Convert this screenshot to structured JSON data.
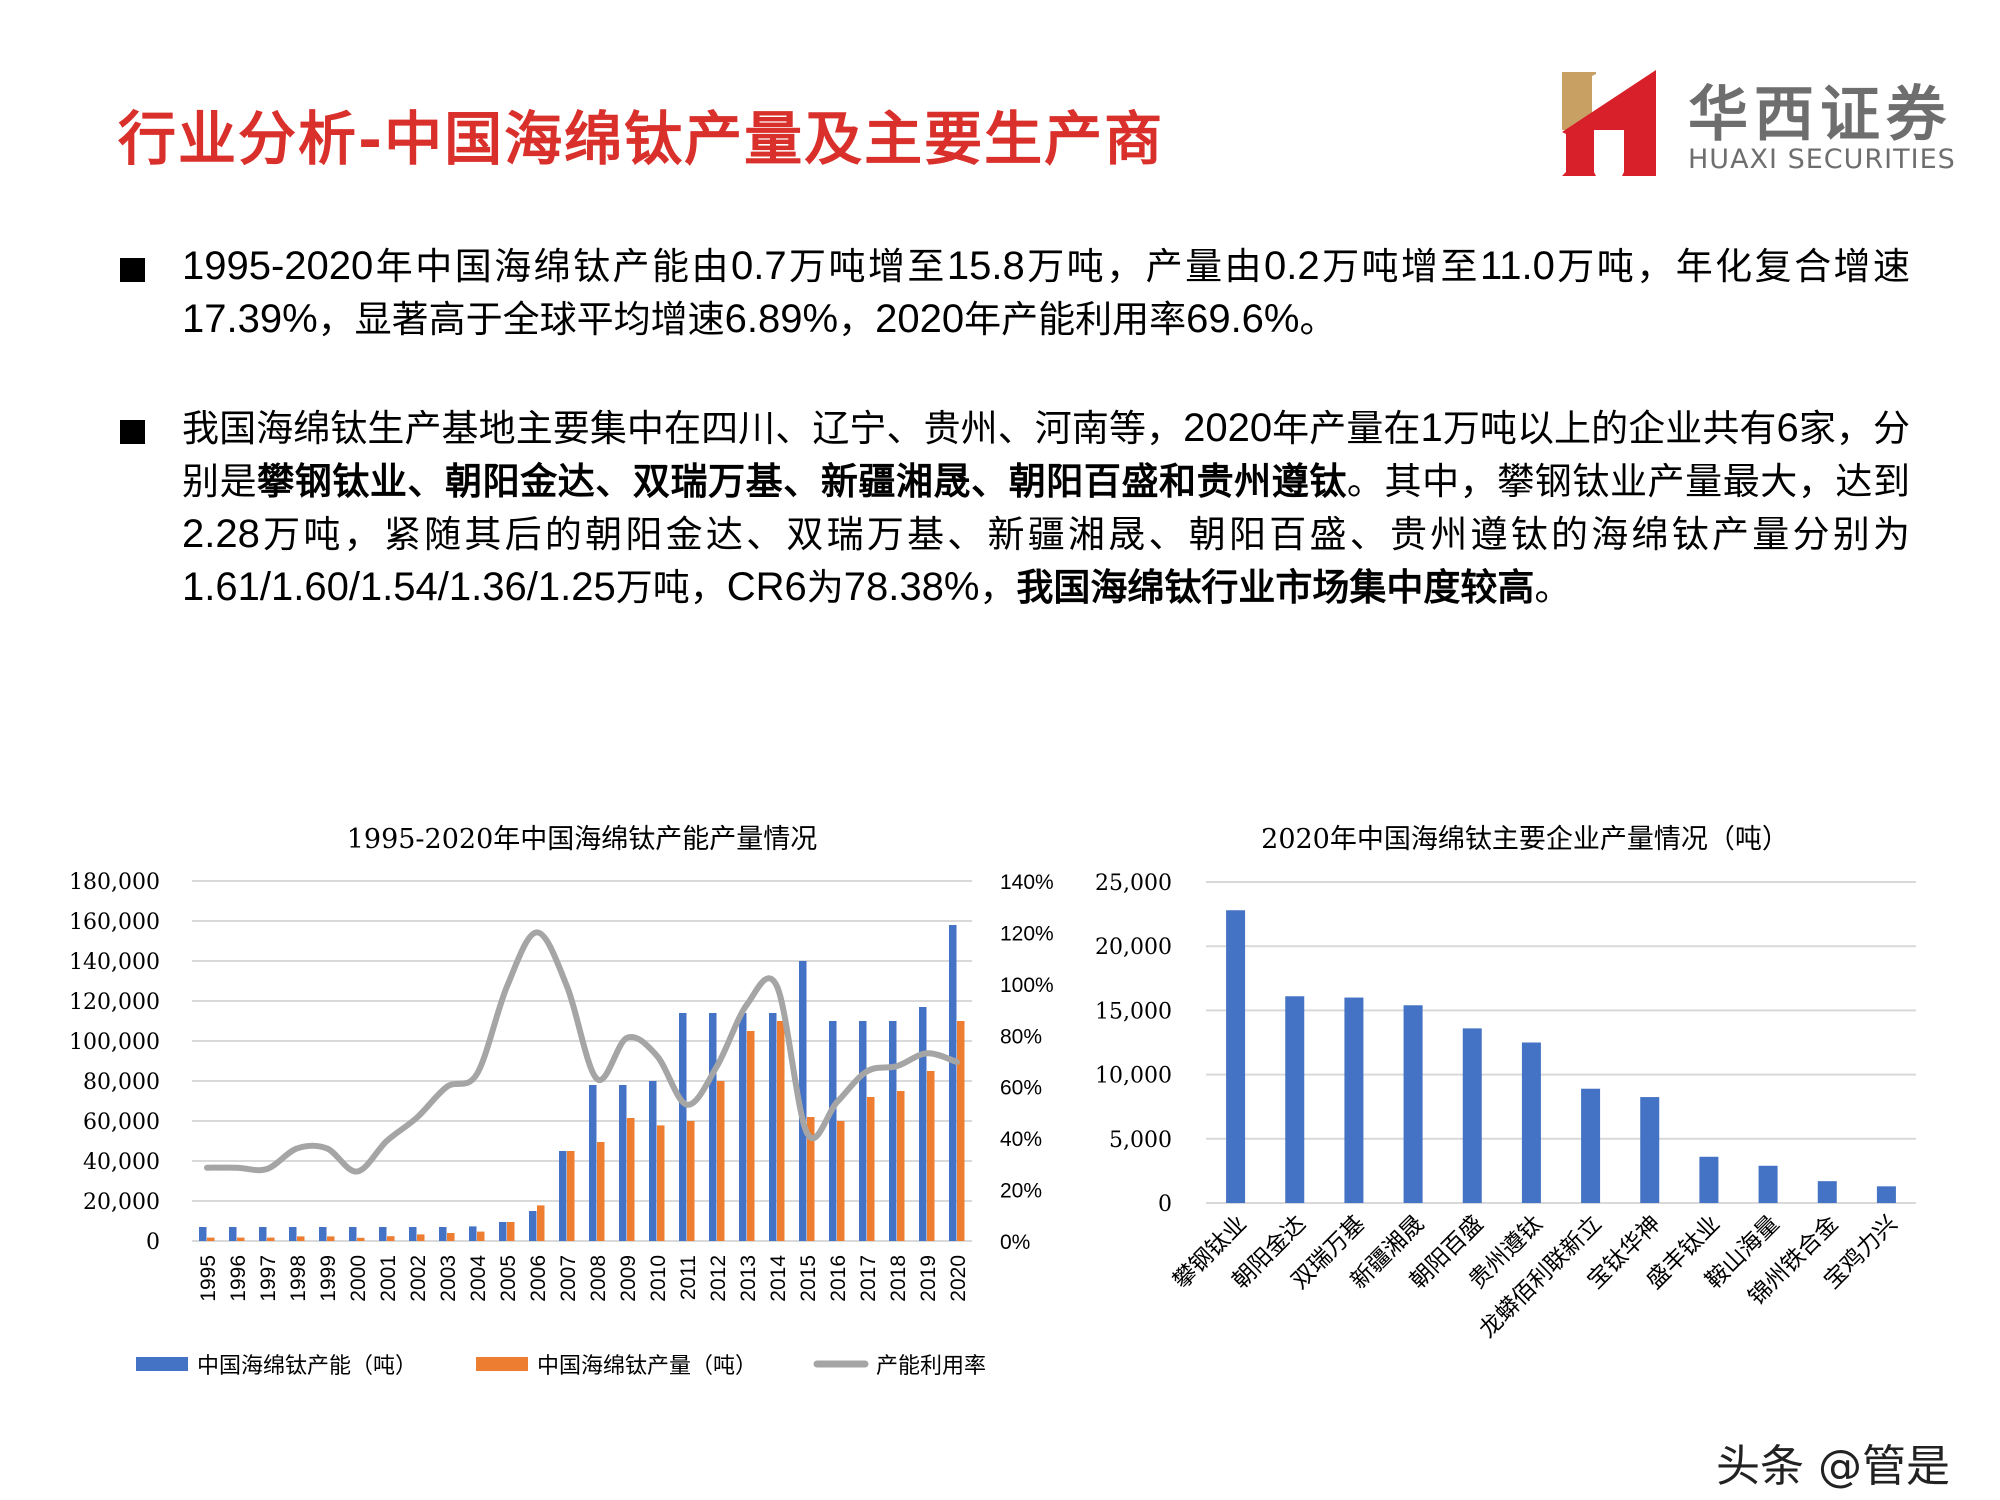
{
  "header": {
    "title": "行业分析-中国海绵钛产量及主要生产商",
    "logo": {
      "cn": "华西证券",
      "en": "HUAXI SECURITIES",
      "gold": "#c9a063",
      "red": "#d7202a"
    }
  },
  "bullets": [
    {
      "segments": [
        {
          "t": "1995-2020",
          "n": true
        },
        {
          "t": "年中国海绵钛产能由"
        },
        {
          "t": "0.7",
          "n": true
        },
        {
          "t": "万吨增至"
        },
        {
          "t": "15.8",
          "n": true
        },
        {
          "t": "万吨，产量由"
        },
        {
          "t": "0.2",
          "n": true
        },
        {
          "t": "万吨增至"
        },
        {
          "t": "11.0",
          "n": true
        },
        {
          "t": "万吨，年化复合增速"
        },
        {
          "t": "17.39%",
          "n": true
        },
        {
          "t": "，显著高于全球平均增速"
        },
        {
          "t": "6.89%",
          "n": true
        },
        {
          "t": "，"
        },
        {
          "t": "2020",
          "n": true
        },
        {
          "t": "年产能利用率"
        },
        {
          "t": "69.6%",
          "n": true
        },
        {
          "t": "。"
        }
      ]
    },
    {
      "segments": [
        {
          "t": "我国海绵钛生产基地主要集中在四川、辽宁、贵州、河南等，"
        },
        {
          "t": "2020",
          "n": true
        },
        {
          "t": "年产量在"
        },
        {
          "t": "1",
          "n": true
        },
        {
          "t": "万吨以上的企业共有"
        },
        {
          "t": "6",
          "n": true
        },
        {
          "t": "家，分别是"
        },
        {
          "t": "攀钢钛业、朝阳金达、双瑞万基、新疆湘晟、朝阳百盛和贵州遵钛",
          "b": true
        },
        {
          "t": "。其中，攀钢钛业产量最大，达到"
        },
        {
          "t": "2.28",
          "n": true
        },
        {
          "t": "万吨，紧随其后的朝阳金达、双瑞万基、新疆湘晟、朝阳百盛、贵州遵钛的海绵钛产量分别为"
        },
        {
          "t": "1.61/1.60/1.54/1.36/1.25",
          "n": true
        },
        {
          "t": "万吨，"
        },
        {
          "t": "CR6",
          "n": true
        },
        {
          "t": "为"
        },
        {
          "t": "78.38%",
          "n": true
        },
        {
          "t": "，"
        },
        {
          "t": "我国海绵钛行业市场集中度较高",
          "b": true
        },
        {
          "t": "。"
        }
      ]
    }
  ],
  "chart_data": [
    {
      "type": "bar+line",
      "title": "1995-2020年中国海绵钛产能产量情况",
      "categories": [
        "1995",
        "1996",
        "1997",
        "1998",
        "1999",
        "2000",
        "2001",
        "2002",
        "2003",
        "2004",
        "2005",
        "2006",
        "2007",
        "2008",
        "2009",
        "2010",
        "2011",
        "2012",
        "2013",
        "2014",
        "2015",
        "2016",
        "2017",
        "2018",
        "2019",
        "2020"
      ],
      "series": [
        {
          "name": "中国海绵钛产能（吨）",
          "type": "bar",
          "axis": "left",
          "color": "#4472c4",
          "values": [
            7000,
            7000,
            7000,
            7000,
            7000,
            7000,
            7000,
            7000,
            7000,
            7300,
            9500,
            15000,
            45000,
            78000,
            78000,
            80000,
            114000,
            114000,
            114000,
            114000,
            140000,
            110000,
            110000,
            110000,
            117000,
            158000
          ]
        },
        {
          "name": "中国海绵钛产量（吨）",
          "type": "bar",
          "axis": "left",
          "color": "#ed7d31",
          "values": [
            1700,
            1700,
            1700,
            2300,
            2300,
            1600,
            2400,
            3300,
            4000,
            4700,
            9500,
            17800,
            45000,
            49500,
            61500,
            57800,
            60000,
            80000,
            105000,
            110000,
            62000,
            60000,
            72000,
            75000,
            85000,
            110000
          ]
        },
        {
          "name": "产能利用率",
          "type": "line",
          "axis": "right",
          "color": "#a5a5a5",
          "values": [
            28.5,
            28.5,
            28.0,
            36.0,
            36.0,
            27.0,
            39.0,
            48.0,
            60.0,
            65.0,
            99.0,
            120.0,
            99.0,
            63.0,
            79.0,
            72.0,
            53.0,
            68.0,
            92.0,
            99.0,
            42.0,
            54.0,
            66.0,
            68.0,
            73.0,
            69.6
          ]
        }
      ],
      "y_left": {
        "min": 0,
        "max": 180000,
        "step": 20000,
        "ticks": [
          "0",
          "20,000",
          "40,000",
          "60,000",
          "80,000",
          "100,000",
          "120,000",
          "140,000",
          "160,000",
          "180,000"
        ]
      },
      "y_right": {
        "min": 0,
        "max": 140,
        "step": 20,
        "ticks": [
          "0%",
          "20%",
          "40%",
          "60%",
          "80%",
          "100%",
          "120%",
          "140%"
        ]
      },
      "xlabel": "",
      "ylabel": "",
      "grid": true,
      "legend_position": "bottom"
    },
    {
      "type": "bar",
      "title": "2020年中国海绵钛主要企业产量情况（吨）",
      "categories": [
        "攀钢钛业",
        "朝阳金达",
        "双瑞万基",
        "新疆湘晟",
        "朝阳百盛",
        "贵州遵钛",
        "龙蟒佰利联新立",
        "宝钛华神",
        "盛丰钛业",
        "鞍山海量",
        "锦州铁合金",
        "宝鸡力兴"
      ],
      "values": [
        22800,
        16100,
        16000,
        15400,
        13600,
        12500,
        8900,
        8250,
        3600,
        2900,
        1700,
        1300
      ],
      "color": "#4472c4",
      "y": {
        "min": 0,
        "max": 25000,
        "step": 5000,
        "ticks": [
          "0",
          "5,000",
          "10,000",
          "15,000",
          "20,000",
          "25,000"
        ]
      },
      "xlabel": "",
      "ylabel": "",
      "grid": true
    }
  ],
  "watermark": "头条 @管是",
  "colors": {
    "title_red": "#d9302c",
    "grid": "#d9d9d9",
    "axis_text": "#000000"
  }
}
